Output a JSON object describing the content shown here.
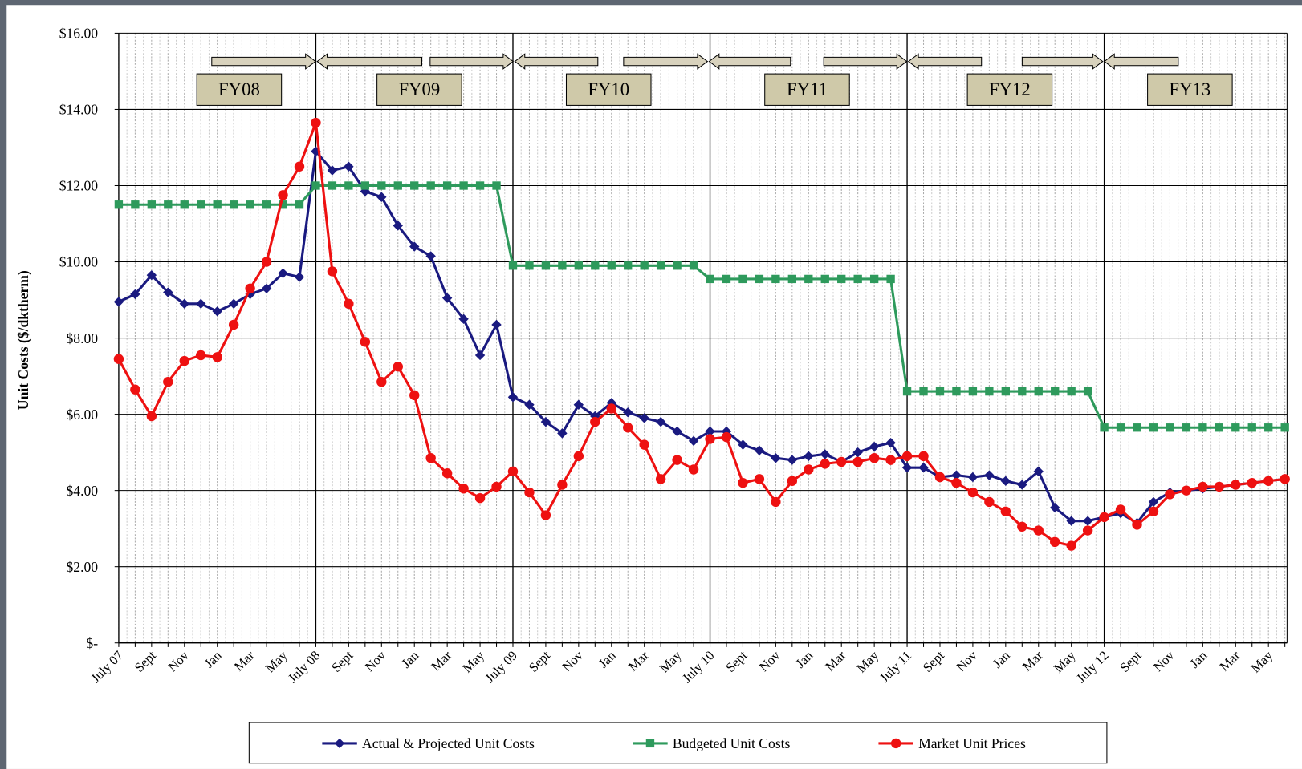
{
  "chart_data": {
    "type": "line",
    "y_label": "Unit Costs ($/dktherm)",
    "annotations": [
      "FY08",
      "FY09",
      "FY10",
      "FY11",
      "FY12",
      "FY13"
    ],
    "categories": [
      "July 07",
      null,
      "Sept",
      null,
      "Nov",
      null,
      "Jan",
      null,
      "Mar",
      null,
      "May",
      null,
      "July 08",
      null,
      "Sept",
      null,
      "Nov",
      null,
      "Jan",
      null,
      "Mar",
      null,
      "May",
      null,
      "July 09",
      null,
      "Sept",
      null,
      "Nov",
      null,
      "Jan",
      null,
      "Mar",
      null,
      "May",
      null,
      "July 10",
      null,
      "Sept",
      null,
      "Nov",
      null,
      "Jan",
      null,
      "Mar",
      null,
      "May",
      null,
      "July 11",
      null,
      "Sept",
      null,
      "Nov",
      null,
      "Jan",
      null,
      "Mar",
      null,
      "May",
      null,
      "July 12",
      null,
      "Sept",
      null,
      "Nov",
      null,
      "Jan",
      null,
      "Mar",
      null,
      "May",
      null
    ],
    "series": [
      {
        "name": "Actual & Projected Unit Costs",
        "color": "#1a1a80",
        "marker": "diamond",
        "values": [
          8.95,
          9.15,
          9.65,
          9.2,
          8.9,
          8.9,
          8.7,
          8.9,
          9.15,
          9.3,
          9.7,
          9.6,
          12.9,
          12.4,
          12.5,
          11.85,
          11.7,
          10.95,
          10.4,
          10.15,
          9.05,
          8.5,
          7.55,
          8.35,
          6.45,
          6.25,
          5.8,
          5.5,
          6.25,
          5.95,
          6.3,
          6.05,
          5.9,
          5.8,
          5.55,
          5.3,
          5.55,
          5.55,
          5.2,
          5.05,
          4.85,
          4.8,
          4.9,
          4.95,
          4.75,
          5.0,
          5.15,
          5.25,
          4.6,
          4.6,
          4.35,
          4.4,
          4.35,
          4.4,
          4.25,
          4.15,
          4.5,
          3.55,
          3.2,
          3.2,
          3.3,
          3.4,
          3.15,
          3.7,
          3.95,
          4.0,
          4.05,
          4.1,
          4.15,
          4.2,
          4.25,
          4.3
        ]
      },
      {
        "name": "Budgeted Unit Costs",
        "color": "#2e9a5c",
        "marker": "square",
        "values": [
          11.5,
          11.5,
          11.5,
          11.5,
          11.5,
          11.5,
          11.5,
          11.5,
          11.5,
          11.5,
          11.5,
          11.5,
          12.0,
          12.0,
          12.0,
          12.0,
          12.0,
          12.0,
          12.0,
          12.0,
          12.0,
          12.0,
          12.0,
          12.0,
          9.9,
          9.9,
          9.9,
          9.9,
          9.9,
          9.9,
          9.9,
          9.9,
          9.9,
          9.9,
          9.9,
          9.9,
          9.55,
          9.55,
          9.55,
          9.55,
          9.55,
          9.55,
          9.55,
          9.55,
          9.55,
          9.55,
          9.55,
          9.55,
          6.6,
          6.6,
          6.6,
          6.6,
          6.6,
          6.6,
          6.6,
          6.6,
          6.6,
          6.6,
          6.6,
          6.6,
          5.65,
          5.65,
          5.65,
          5.65,
          5.65,
          5.65,
          5.65,
          5.65,
          5.65,
          5.65,
          5.65,
          5.65
        ]
      },
      {
        "name": "Market Unit Prices",
        "color": "#ee1111",
        "marker": "circle",
        "values": [
          7.45,
          6.65,
          5.95,
          6.85,
          7.4,
          7.55,
          7.5,
          8.35,
          9.3,
          10.0,
          11.75,
          12.5,
          13.65,
          9.75,
          8.9,
          7.9,
          6.85,
          7.25,
          6.5,
          4.85,
          4.45,
          4.05,
          3.8,
          4.1,
          4.5,
          3.95,
          3.35,
          4.15,
          4.9,
          5.8,
          6.15,
          5.65,
          5.2,
          4.3,
          4.8,
          4.55,
          5.35,
          5.4,
          4.2,
          4.3,
          3.7,
          4.25,
          4.55,
          4.7,
          4.75,
          4.75,
          4.85,
          4.8,
          4.9,
          4.9,
          4.35,
          4.2,
          3.95,
          3.7,
          3.45,
          3.05,
          2.95,
          2.65,
          2.55,
          2.95,
          3.3,
          3.5,
          3.1,
          3.45,
          3.9,
          4.0,
          4.1,
          4.1,
          4.15,
          4.2,
          4.25,
          4.3
        ]
      }
    ],
    "ylim": [
      0,
      16
    ],
    "yticks": [
      {
        "value": 0,
        "label": "$-"
      },
      {
        "value": 2,
        "label": "$2.00"
      },
      {
        "value": 4,
        "label": "$4.00"
      },
      {
        "value": 6,
        "label": "$6.00"
      },
      {
        "value": 8,
        "label": "$8.00"
      },
      {
        "value": 10,
        "label": "$10.00"
      },
      {
        "value": 12,
        "label": "$12.00"
      },
      {
        "value": 14,
        "label": "$14.00"
      },
      {
        "value": 16,
        "label": "$16.00"
      }
    ],
    "grid": true,
    "legend": "bottom"
  }
}
